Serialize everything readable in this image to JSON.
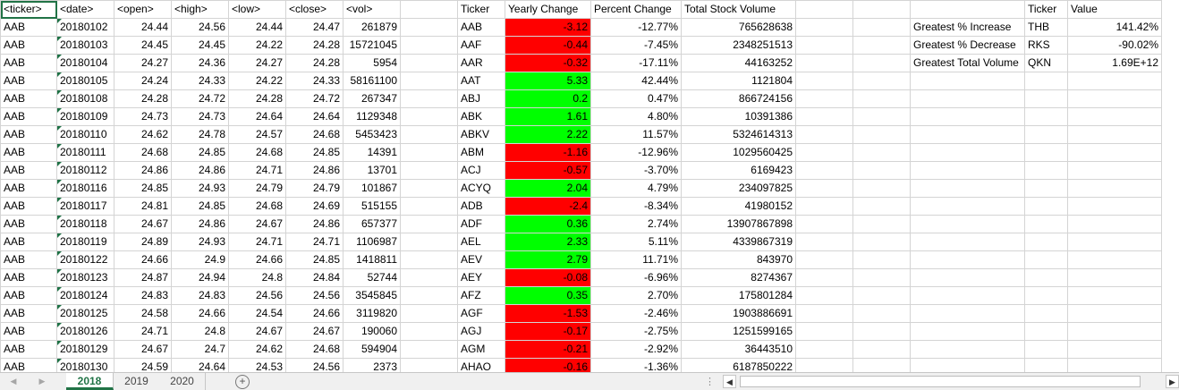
{
  "sheet_tabs": [
    "2018",
    "2019",
    "2020"
  ],
  "active_tab": "2018",
  "raw_headers": [
    "<ticker>",
    "<date>",
    "<open>",
    "<high>",
    "<low>",
    "<close>",
    "<vol>"
  ],
  "raw_rows": [
    [
      "AAB",
      "20180102",
      "24.44",
      "24.56",
      "24.44",
      "24.47",
      "261879"
    ],
    [
      "AAB",
      "20180103",
      "24.45",
      "24.45",
      "24.22",
      "24.28",
      "15721045"
    ],
    [
      "AAB",
      "20180104",
      "24.27",
      "24.36",
      "24.27",
      "24.28",
      "5954"
    ],
    [
      "AAB",
      "20180105",
      "24.24",
      "24.33",
      "24.22",
      "24.33",
      "58161100"
    ],
    [
      "AAB",
      "20180108",
      "24.28",
      "24.72",
      "24.28",
      "24.72",
      "267347"
    ],
    [
      "AAB",
      "20180109",
      "24.73",
      "24.73",
      "24.64",
      "24.64",
      "1129348"
    ],
    [
      "AAB",
      "20180110",
      "24.62",
      "24.78",
      "24.57",
      "24.68",
      "5453423"
    ],
    [
      "AAB",
      "20180111",
      "24.68",
      "24.85",
      "24.68",
      "24.85",
      "14391"
    ],
    [
      "AAB",
      "20180112",
      "24.86",
      "24.86",
      "24.71",
      "24.86",
      "13701"
    ],
    [
      "AAB",
      "20180116",
      "24.85",
      "24.93",
      "24.79",
      "24.79",
      "101867"
    ],
    [
      "AAB",
      "20180117",
      "24.81",
      "24.85",
      "24.68",
      "24.69",
      "515155"
    ],
    [
      "AAB",
      "20180118",
      "24.67",
      "24.86",
      "24.67",
      "24.86",
      "657377"
    ],
    [
      "AAB",
      "20180119",
      "24.89",
      "24.93",
      "24.71",
      "24.71",
      "1106987"
    ],
    [
      "AAB",
      "20180122",
      "24.66",
      "24.9",
      "24.66",
      "24.85",
      "1418811"
    ],
    [
      "AAB",
      "20180123",
      "24.87",
      "24.94",
      "24.8",
      "24.84",
      "52744"
    ],
    [
      "AAB",
      "20180124",
      "24.83",
      "24.83",
      "24.56",
      "24.56",
      "3545845"
    ],
    [
      "AAB",
      "20180125",
      "24.58",
      "24.66",
      "24.54",
      "24.66",
      "3119820"
    ],
    [
      "AAB",
      "20180126",
      "24.71",
      "24.8",
      "24.67",
      "24.67",
      "190060"
    ],
    [
      "AAB",
      "20180129",
      "24.67",
      "24.7",
      "24.62",
      "24.68",
      "594904"
    ],
    [
      "AAB",
      "20180130",
      "24.59",
      "24.64",
      "24.53",
      "24.56",
      "2373"
    ]
  ],
  "summary_headers": [
    "Ticker",
    "Yearly Change",
    "Percent Change",
    "Total Stock Volume"
  ],
  "summary_rows": [
    [
      "AAB",
      "-3.12",
      "-12.77%",
      "765628638"
    ],
    [
      "AAF",
      "-0.44",
      "-7.45%",
      "2348251513"
    ],
    [
      "AAR",
      "-0.32",
      "-17.11%",
      "44163252"
    ],
    [
      "AAT",
      "5.33",
      "42.44%",
      "1121804"
    ],
    [
      "ABJ",
      "0.2",
      "0.47%",
      "866724156"
    ],
    [
      "ABK",
      "1.61",
      "4.80%",
      "10391386"
    ],
    [
      "ABKV",
      "2.22",
      "11.57%",
      "5324614313"
    ],
    [
      "ABM",
      "-1.16",
      "-12.96%",
      "1029560425"
    ],
    [
      "ACJ",
      "-0.57",
      "-3.70%",
      "6169423"
    ],
    [
      "ACYQ",
      "2.04",
      "4.79%",
      "234097825"
    ],
    [
      "ADB",
      "-2.4",
      "-8.34%",
      "41980152"
    ],
    [
      "ADF",
      "0.36",
      "2.74%",
      "13907867898"
    ],
    [
      "AEL",
      "2.33",
      "5.11%",
      "4339867319"
    ],
    [
      "AEV",
      "2.79",
      "11.71%",
      "843970"
    ],
    [
      "AEY",
      "-0.08",
      "-6.96%",
      "8274367"
    ],
    [
      "AFZ",
      "0.35",
      "2.70%",
      "175801284"
    ],
    [
      "AGF",
      "-1.53",
      "-2.46%",
      "1903886691"
    ],
    [
      "AGJ",
      "-0.17",
      "-2.75%",
      "1251599165"
    ],
    [
      "AGM",
      "-0.21",
      "-2.92%",
      "36443510"
    ],
    [
      "AHAO",
      "-0.16",
      "-1.36%",
      "6187850222"
    ]
  ],
  "greatest_headers": [
    "Ticker",
    "Value"
  ],
  "greatest_rows": [
    [
      "Greatest % Increase",
      "THB",
      "141.42%"
    ],
    [
      "Greatest % Decrease",
      "RKS",
      "-90.02%"
    ],
    [
      "Greatest Total Volume",
      "QKN",
      "1.69E+12"
    ]
  ],
  "colors": {
    "negative": "#ff0000",
    "positive": "#00ff00",
    "accent": "#217346"
  },
  "icons": [
    "tab-scroll-left-icon",
    "tab-scroll-right-icon",
    "add-sheet-icon",
    "scroll-left-icon",
    "scroll-right-icon"
  ]
}
